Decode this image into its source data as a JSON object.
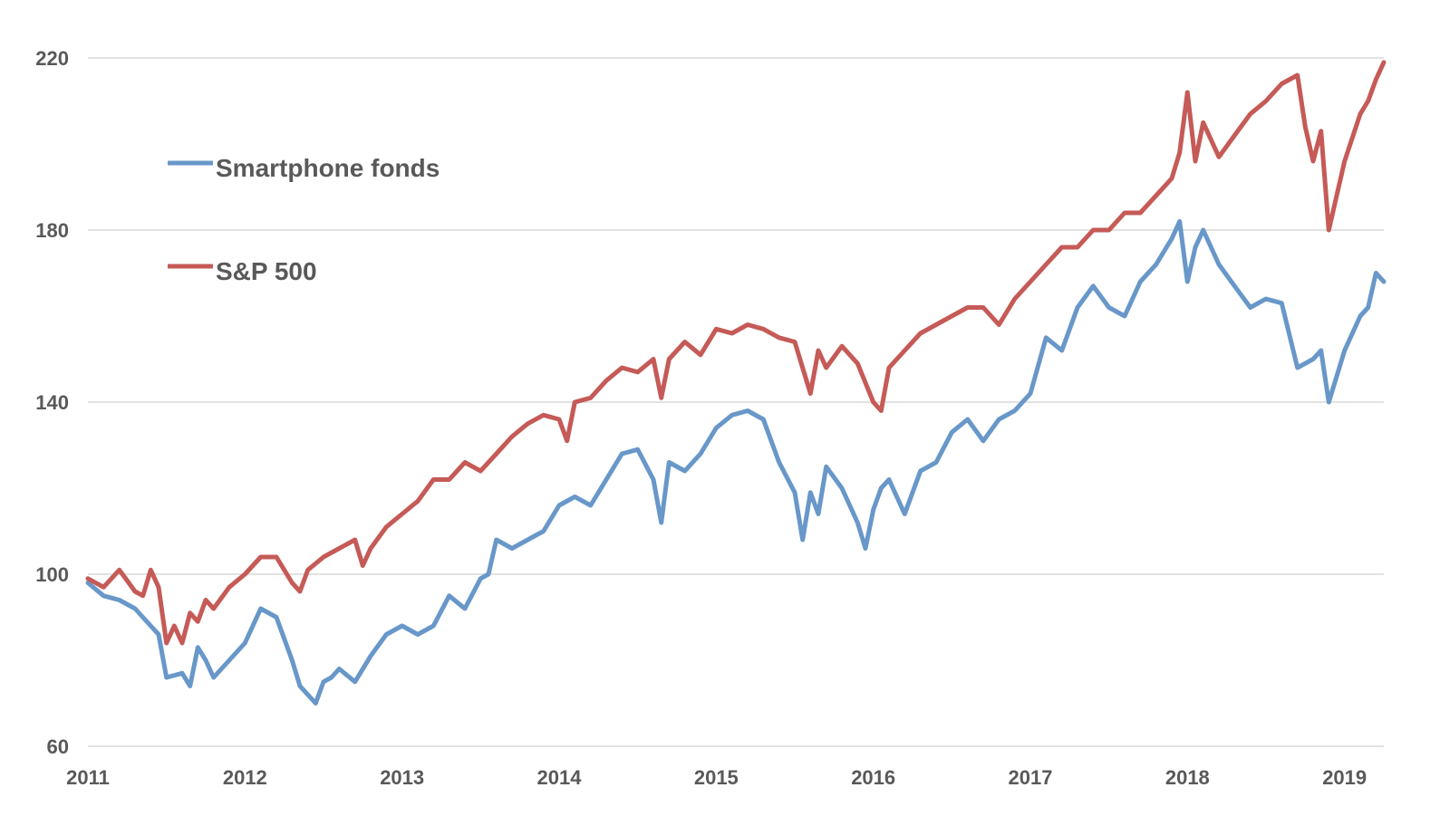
{
  "chart_data": {
    "type": "line",
    "title": "",
    "xlabel": "",
    "ylabel": "",
    "xlim": [
      2011,
      2019.25
    ],
    "ylim": [
      60,
      220
    ],
    "grid": true,
    "x_ticks": [
      "2011",
      "2012",
      "2013",
      "2014",
      "2015",
      "2016",
      "2017",
      "2018",
      "2019"
    ],
    "y_ticks": [
      "60",
      "100",
      "140",
      "180",
      "220"
    ],
    "legend_position": "top-left",
    "series": [
      {
        "name": "Smartphone fonds",
        "color": "#6897C9",
        "x": [
          2011.0,
          2011.1,
          2011.2,
          2011.3,
          2011.4,
          2011.45,
          2011.5,
          2011.6,
          2011.65,
          2011.7,
          2011.75,
          2011.8,
          2011.9,
          2012.0,
          2012.1,
          2012.2,
          2012.3,
          2012.35,
          2012.45,
          2012.5,
          2012.55,
          2012.6,
          2012.7,
          2012.8,
          2012.9,
          2013.0,
          2013.1,
          2013.2,
          2013.3,
          2013.4,
          2013.5,
          2013.55,
          2013.6,
          2013.7,
          2013.8,
          2013.9,
          2014.0,
          2014.1,
          2014.2,
          2014.3,
          2014.4,
          2014.5,
          2014.6,
          2014.65,
          2014.7,
          2014.8,
          2014.9,
          2015.0,
          2015.1,
          2015.2,
          2015.3,
          2015.4,
          2015.5,
          2015.55,
          2015.6,
          2015.65,
          2015.7,
          2015.8,
          2015.9,
          2015.95,
          2016.0,
          2016.05,
          2016.1,
          2016.2,
          2016.3,
          2016.4,
          2016.5,
          2016.6,
          2016.7,
          2016.8,
          2016.9,
          2017.0,
          2017.1,
          2017.2,
          2017.3,
          2017.4,
          2017.5,
          2017.6,
          2017.7,
          2017.8,
          2017.9,
          2017.95,
          2018.0,
          2018.05,
          2018.1,
          2018.2,
          2018.3,
          2018.4,
          2018.5,
          2018.6,
          2018.7,
          2018.8,
          2018.85,
          2018.9,
          2019.0,
          2019.1,
          2019.15,
          2019.2,
          2019.25
        ],
        "values": [
          98,
          95,
          94,
          92,
          88,
          86,
          76,
          77,
          74,
          83,
          80,
          76,
          80,
          84,
          92,
          90,
          80,
          74,
          70,
          75,
          76,
          78,
          75,
          81,
          86,
          88,
          86,
          88,
          95,
          92,
          99,
          100,
          108,
          106,
          108,
          110,
          116,
          118,
          116,
          122,
          128,
          129,
          122,
          112,
          126,
          124,
          128,
          134,
          137,
          138,
          136,
          126,
          119,
          108,
          119,
          114,
          125,
          120,
          112,
          106,
          115,
          120,
          122,
          114,
          124,
          126,
          133,
          136,
          131,
          136,
          138,
          142,
          155,
          152,
          162,
          167,
          162,
          160,
          168,
          172,
          178,
          182,
          168,
          176,
          180,
          172,
          167,
          162,
          164,
          163,
          148,
          150,
          152,
          140,
          152,
          160,
          162,
          170,
          168
        ]
      },
      {
        "name": "S&P 500",
        "color": "#C55A57",
        "x": [
          2011.0,
          2011.1,
          2011.2,
          2011.3,
          2011.35,
          2011.4,
          2011.45,
          2011.5,
          2011.55,
          2011.6,
          2011.65,
          2011.7,
          2011.75,
          2011.8,
          2011.9,
          2012.0,
          2012.1,
          2012.2,
          2012.3,
          2012.35,
          2012.4,
          2012.5,
          2012.6,
          2012.7,
          2012.75,
          2012.8,
          2012.9,
          2013.0,
          2013.1,
          2013.2,
          2013.3,
          2013.4,
          2013.5,
          2013.6,
          2013.7,
          2013.8,
          2013.9,
          2014.0,
          2014.05,
          2014.1,
          2014.2,
          2014.3,
          2014.4,
          2014.5,
          2014.6,
          2014.65,
          2014.7,
          2014.8,
          2014.9,
          2015.0,
          2015.1,
          2015.2,
          2015.3,
          2015.4,
          2015.5,
          2015.6,
          2015.65,
          2015.7,
          2015.8,
          2015.9,
          2016.0,
          2016.05,
          2016.1,
          2016.2,
          2016.3,
          2016.4,
          2016.5,
          2016.6,
          2016.7,
          2016.8,
          2016.9,
          2017.0,
          2017.1,
          2017.2,
          2017.3,
          2017.4,
          2017.5,
          2017.6,
          2017.7,
          2017.8,
          2017.9,
          2017.95,
          2018.0,
          2018.05,
          2018.1,
          2018.2,
          2018.3,
          2018.4,
          2018.5,
          2018.6,
          2018.7,
          2018.75,
          2018.8,
          2018.85,
          2018.9,
          2019.0,
          2019.1,
          2019.15,
          2019.2,
          2019.25
        ],
        "values": [
          99,
          97,
          101,
          96,
          95,
          101,
          97,
          84,
          88,
          84,
          91,
          89,
          94,
          92,
          97,
          100,
          104,
          104,
          98,
          96,
          101,
          104,
          106,
          108,
          102,
          106,
          111,
          114,
          117,
          122,
          122,
          126,
          124,
          128,
          132,
          135,
          137,
          136,
          131,
          140,
          141,
          145,
          148,
          147,
          150,
          141,
          150,
          154,
          151,
          157,
          156,
          158,
          157,
          155,
          154,
          142,
          152,
          148,
          153,
          149,
          140,
          138,
          148,
          152,
          156,
          158,
          160,
          162,
          162,
          158,
          164,
          168,
          172,
          176,
          176,
          180,
          180,
          184,
          184,
          188,
          192,
          198,
          212,
          196,
          205,
          197,
          202,
          207,
          210,
          214,
          216,
          204,
          196,
          203,
          180,
          196,
          207,
          210,
          215,
          219
        ]
      }
    ]
  }
}
